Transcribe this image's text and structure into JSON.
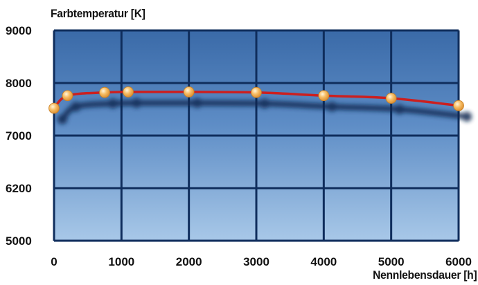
{
  "chart_data": {
    "type": "line",
    "title": "",
    "xlabel": "Nennlebensdauer [h]",
    "ylabel": "Farbtemperatur [K]",
    "x_ticks": [
      "0",
      "1000",
      "2000",
      "3000",
      "4000",
      "5000",
      "6000"
    ],
    "y_ticks": [
      "5000",
      "6200",
      "7000",
      "8000",
      "9000"
    ],
    "xlim": [
      0,
      6000
    ],
    "y_tick_values": [
      5000,
      6200,
      7000,
      8000,
      9000
    ],
    "grid": true,
    "legend": "none",
    "series": [
      {
        "x": [
          0,
          200,
          750,
          1100,
          2000,
          3000,
          4000,
          5000,
          6000
        ],
        "y": [
          7520,
          7760,
          7820,
          7830,
          7830,
          7820,
          7760,
          7710,
          7570
        ]
      }
    ],
    "colors": {
      "line": "#cc1f1f",
      "marker": "#f5b35a",
      "grid": "#0f2d5c",
      "plot_top": "#3a6aa8",
      "plot_bottom": "#a4c4e6"
    }
  }
}
